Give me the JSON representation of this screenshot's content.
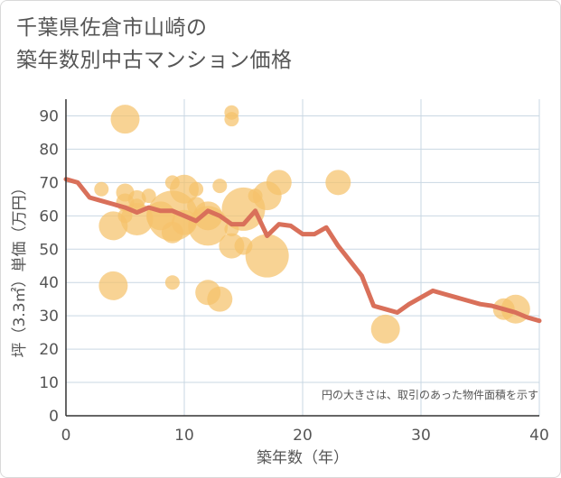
{
  "title_line1": "千葉県佐倉市山崎の",
  "title_line2": "築年数別中古マンション価格",
  "chart_data": {
    "type": "scatter",
    "xlabel": "築年数（年）",
    "ylabel": "坪（3.3㎡）単価（万円）",
    "xlim": [
      0,
      40
    ],
    "ylim": [
      0,
      95
    ],
    "x_ticks": [
      "0",
      "10",
      "20",
      "30",
      "40"
    ],
    "y_ticks": [
      "0",
      "10",
      "20",
      "30",
      "40",
      "50",
      "60",
      "70",
      "80",
      "90"
    ],
    "x_tick_values": [
      0,
      10,
      20,
      30,
      40
    ],
    "y_tick_values": [
      0,
      10,
      20,
      30,
      40,
      50,
      60,
      70,
      80,
      90
    ],
    "grid": true,
    "note": "円の大きさは、取引のあった物件面積を示す",
    "colors": {
      "bubble": "#f5c26b",
      "line": "#d9705a",
      "grid": "#c9d7e3",
      "text": "#555555"
    },
    "bubbles": [
      {
        "x": 3,
        "y": 68,
        "s": 1
      },
      {
        "x": 4,
        "y": 57,
        "s": 3
      },
      {
        "x": 4,
        "y": 39,
        "s": 3
      },
      {
        "x": 5,
        "y": 89,
        "s": 3
      },
      {
        "x": 5,
        "y": 67,
        "s": 1.5
      },
      {
        "x": 5,
        "y": 64,
        "s": 1.5
      },
      {
        "x": 5,
        "y": 60,
        "s": 1
      },
      {
        "x": 6,
        "y": 65,
        "s": 1.5
      },
      {
        "x": 6,
        "y": 63,
        "s": 1
      },
      {
        "x": 6,
        "y": 59,
        "s": 3.5
      },
      {
        "x": 7,
        "y": 66,
        "s": 1
      },
      {
        "x": 8,
        "y": 60,
        "s": 3
      },
      {
        "x": 9,
        "y": 70,
        "s": 1
      },
      {
        "x": 9,
        "y": 60,
        "s": 6
      },
      {
        "x": 9,
        "y": 55,
        "s": 2
      },
      {
        "x": 9,
        "y": 40,
        "s": 1
      },
      {
        "x": 10,
        "y": 68,
        "s": 3
      },
      {
        "x": 10,
        "y": 58,
        "s": 2.5
      },
      {
        "x": 11,
        "y": 68,
        "s": 1
      },
      {
        "x": 11,
        "y": 63,
        "s": 1.5
      },
      {
        "x": 12,
        "y": 60,
        "s": 3
      },
      {
        "x": 12,
        "y": 57,
        "s": 4.5
      },
      {
        "x": 12,
        "y": 37,
        "s": 2.5
      },
      {
        "x": 13,
        "y": 69,
        "s": 1
      },
      {
        "x": 13,
        "y": 35,
        "s": 2.5
      },
      {
        "x": 14,
        "y": 91,
        "s": 1
      },
      {
        "x": 14,
        "y": 89,
        "s": 1
      },
      {
        "x": 14,
        "y": 56,
        "s": 1
      },
      {
        "x": 14,
        "y": 51,
        "s": 2.5
      },
      {
        "x": 15,
        "y": 62,
        "s": 5
      },
      {
        "x": 15,
        "y": 51,
        "s": 1.5
      },
      {
        "x": 16,
        "y": 66,
        "s": 1
      },
      {
        "x": 17,
        "y": 66,
        "s": 3
      },
      {
        "x": 17,
        "y": 48,
        "s": 5
      },
      {
        "x": 18,
        "y": 70,
        "s": 2.5
      },
      {
        "x": 23,
        "y": 70,
        "s": 2.5
      },
      {
        "x": 27,
        "y": 26,
        "s": 3
      },
      {
        "x": 37,
        "y": 32,
        "s": 2
      },
      {
        "x": 38,
        "y": 32,
        "s": 3
      }
    ],
    "series": [
      {
        "x": [
          0,
          1,
          2,
          3,
          4,
          5,
          6,
          7,
          8,
          9,
          10,
          11,
          12,
          13,
          14,
          15,
          16,
          17,
          18,
          19,
          20,
          21,
          22,
          23,
          24,
          25,
          26,
          27,
          28,
          29,
          30,
          31,
          32,
          33,
          34,
          35,
          36,
          37,
          38,
          39,
          40
        ],
        "values": [
          71,
          70,
          65.5,
          64.5,
          63.5,
          62.5,
          61,
          62.5,
          61.5,
          61.5,
          60,
          58.5,
          61.5,
          60,
          57.5,
          57.5,
          61.5,
          54,
          57.5,
          57,
          54.5,
          54.5,
          56.5,
          51,
          46.5,
          42,
          33,
          32,
          31,
          33.5,
          35.5,
          37.5,
          36.5,
          35.5,
          34.5,
          33.5,
          33,
          32,
          31,
          29.5,
          28.5
        ]
      }
    ]
  }
}
